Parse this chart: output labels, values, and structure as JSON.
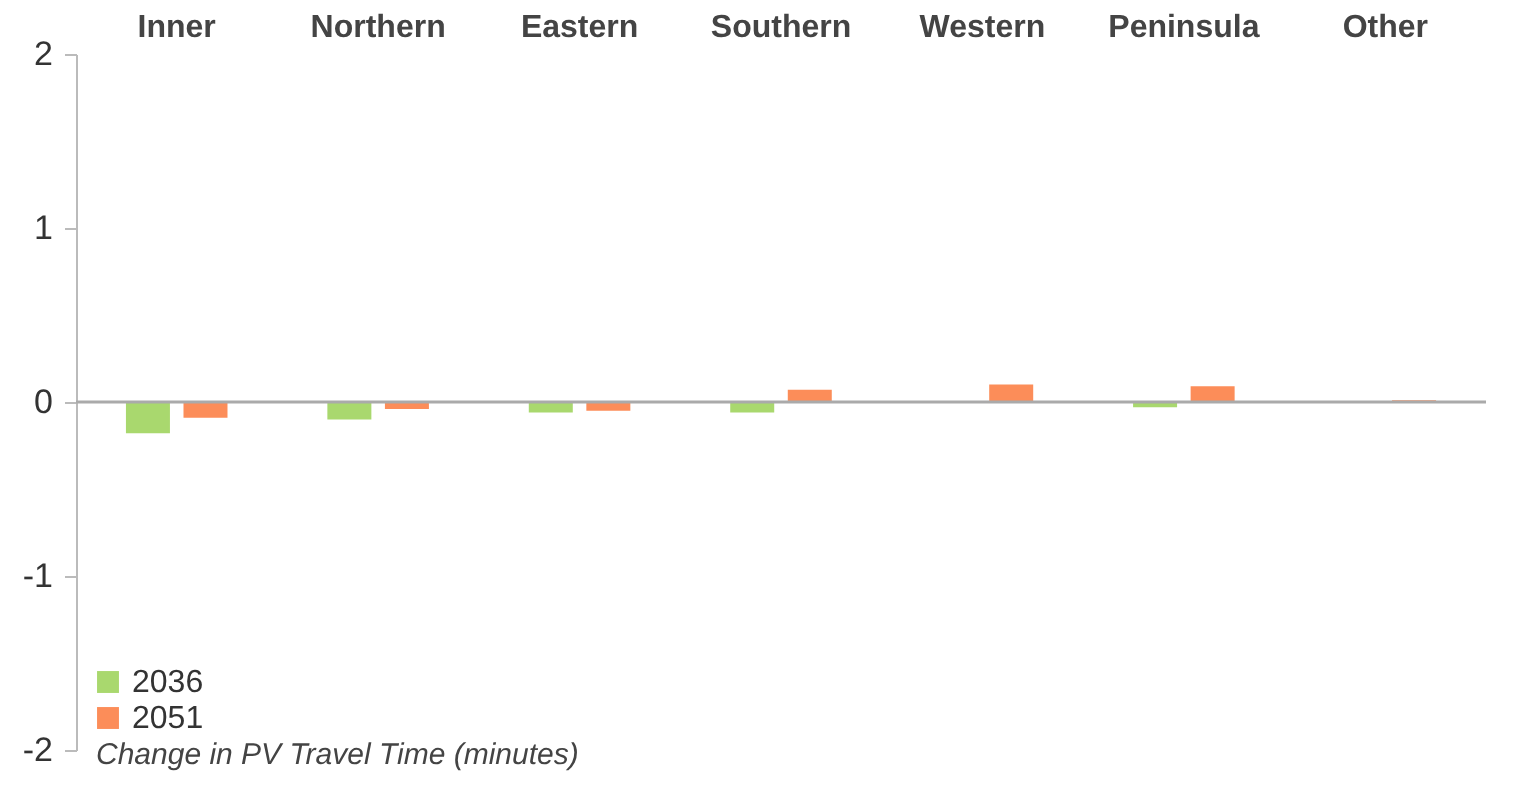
{
  "chart_data": {
    "type": "bar",
    "categories": [
      "Inner",
      "Northern",
      "Eastern",
      "Southern",
      "Western",
      "Peninsula",
      "Other"
    ],
    "series": [
      {
        "name": "2036",
        "color": "#a9d86e",
        "values": [
          -0.18,
          -0.1,
          -0.06,
          -0.06,
          null,
          -0.03,
          null
        ]
      },
      {
        "name": "2051",
        "color": "#fc8d59",
        "values": [
          -0.09,
          -0.04,
          -0.05,
          0.07,
          0.1,
          0.09,
          0.01
        ]
      }
    ],
    "ref_lines": [
      {
        "axis": "y",
        "value": 0,
        "color": "#aaaaaa"
      }
    ],
    "ylim": [
      -2,
      2
    ],
    "yticks": [
      -2,
      -1,
      0,
      1,
      2
    ],
    "grid": false,
    "legend": "bottom left",
    "annotations": [
      "Change in PV Travel Time (minutes)"
    ]
  }
}
